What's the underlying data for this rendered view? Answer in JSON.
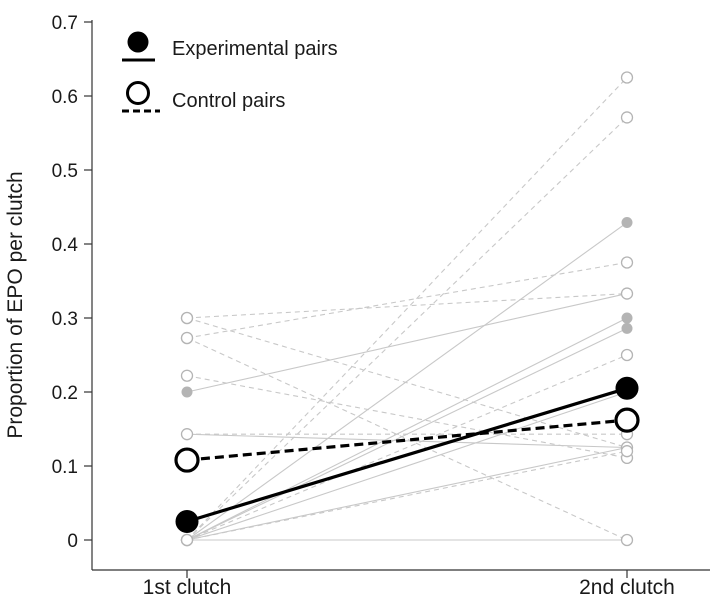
{
  "chart_data": {
    "type": "line",
    "categories": [
      "1st clutch",
      "2nd clutch"
    ],
    "ylabel": "Proportion of EPO per clutch",
    "xlabel": "",
    "ylim": [
      0,
      0.7
    ],
    "yticks": [
      "0",
      "0.1",
      "0.2",
      "0.3",
      "0.4",
      "0.5",
      "0.6",
      "0.7"
    ],
    "legend": {
      "placement": "top-left",
      "entries": [
        {
          "label": "Experimental pairs",
          "group": "experimental"
        },
        {
          "label": "Control pairs",
          "group": "control"
        }
      ]
    },
    "colors": {
      "individual": "#c8c8c8",
      "individual_point_fill": "#b4b4b4",
      "mean": "#000000",
      "axis": "#333333"
    },
    "series": [
      {
        "group": "experimental",
        "values": [
          0.2,
          0.333
        ]
      },
      {
        "group": "experimental",
        "values": [
          0.143,
          0.125
        ]
      },
      {
        "group": "experimental",
        "values": [
          0.0,
          0.429
        ]
      },
      {
        "group": "experimental",
        "values": [
          0.0,
          0.3
        ]
      },
      {
        "group": "experimental",
        "values": [
          0.0,
          0.286
        ]
      },
      {
        "group": "experimental",
        "values": [
          0.0,
          0.2
        ]
      },
      {
        "group": "experimental",
        "values": [
          0.0,
          0.125
        ]
      },
      {
        "group": "experimental",
        "values": [
          0.0,
          0.0
        ]
      },
      {
        "group": "control",
        "values": [
          0.3,
          0.333
        ]
      },
      {
        "group": "control",
        "values": [
          0.3,
          0.125
        ]
      },
      {
        "group": "control",
        "values": [
          0.273,
          0.375
        ]
      },
      {
        "group": "control",
        "values": [
          0.273,
          0.0
        ]
      },
      {
        "group": "control",
        "values": [
          0.222,
          0.111
        ]
      },
      {
        "group": "control",
        "values": [
          0.143,
          0.143
        ]
      },
      {
        "group": "control",
        "values": [
          0.0,
          0.625
        ]
      },
      {
        "group": "control",
        "values": [
          0.0,
          0.571
        ]
      },
      {
        "group": "control",
        "values": [
          0.0,
          0.25
        ]
      },
      {
        "group": "control",
        "values": [
          0.0,
          0.12
        ]
      }
    ],
    "means": [
      {
        "group": "experimental",
        "values": [
          0.025,
          0.205
        ]
      },
      {
        "group": "control",
        "values": [
          0.108,
          0.162
        ]
      }
    ]
  }
}
